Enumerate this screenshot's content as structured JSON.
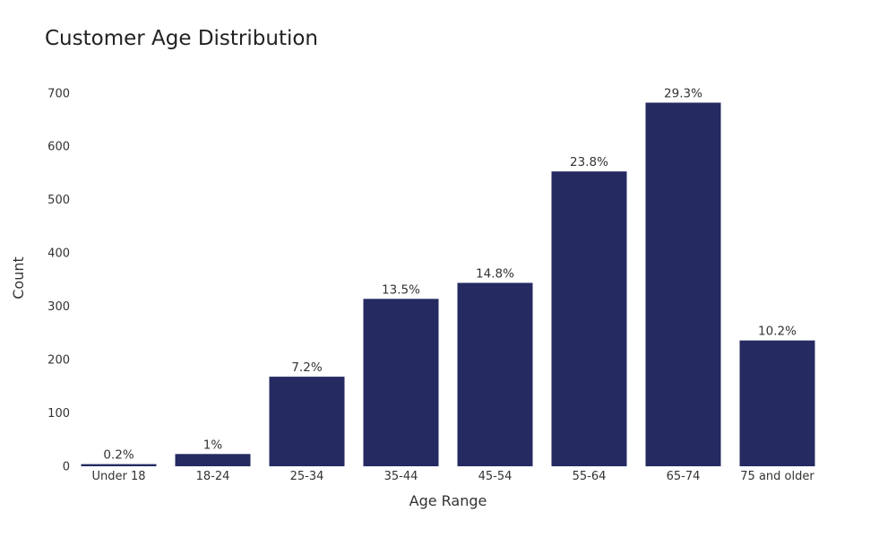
{
  "chart_data": {
    "type": "bar",
    "title": "Customer Age Distribution",
    "xlabel": "Age Range",
    "ylabel": "Count",
    "categories": [
      "Under 18",
      "18-24",
      "25-34",
      "35-44",
      "45-54",
      "55-64",
      "65-74",
      "75 and older"
    ],
    "values": [
      4,
      23,
      168,
      314,
      344,
      553,
      682,
      236
    ],
    "labels": [
      "0.2%",
      "1%",
      "7.2%",
      "13.5%",
      "14.8%",
      "23.8%",
      "29.3%",
      "10.2%"
    ],
    "ylim": [
      0,
      740
    ],
    "yticks": [
      0,
      100,
      200,
      300,
      400,
      500,
      600,
      700
    ],
    "grid": false,
    "legend": "none",
    "bar_color": "#252a61"
  }
}
